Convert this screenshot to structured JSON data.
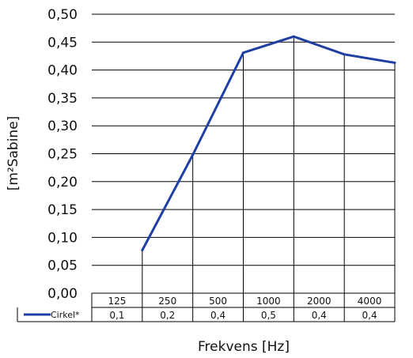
{
  "chart_data": {
    "type": "line",
    "xlabel": "Frekvens [Hz]",
    "ylabel": "[m²Sabine]",
    "categories": [
      "125",
      "250",
      "500",
      "1000",
      "2000",
      "4000"
    ],
    "ylim": [
      0,
      0.5
    ],
    "y_ticks": [
      "0,00",
      "0,05",
      "0,10",
      "0,15",
      "0,20",
      "0,25",
      "0,30",
      "0,35",
      "0,40",
      "0,45",
      "0,50"
    ],
    "grid": true,
    "series": [
      {
        "name": "Cirkel*",
        "color": "#1f3fa3",
        "values": [
          0.077,
          0.248,
          0.431,
          0.46,
          0.428,
          0.413
        ],
        "table_values": [
          "0,1",
          "0,2",
          "0,4",
          "0,5",
          "0,4",
          "0,4"
        ]
      }
    ]
  }
}
